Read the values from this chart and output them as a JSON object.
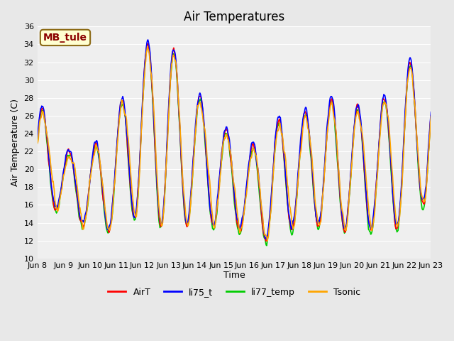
{
  "title": "Air Temperatures",
  "xlabel": "Time",
  "ylabel": "Air Temperature (C)",
  "ylim": [
    10,
    36
  ],
  "yticks": [
    10,
    12,
    14,
    16,
    18,
    20,
    22,
    24,
    26,
    28,
    30,
    32,
    34,
    36
  ],
  "annotation_text": "MB_tule",
  "annotation_color": "#8B0000",
  "annotation_bg": "#FFFFD0",
  "annotation_border": "#8B6914",
  "colors": {
    "AirT": "#FF0000",
    "li75_t": "#0000FF",
    "li77_temp": "#00CC00",
    "Tsonic": "#FFA500"
  },
  "line_width": 1.2,
  "background_color": "#E8E8E8",
  "plot_bg": "#EFEFEF",
  "grid_color": "#FFFFFF",
  "title_fontsize": 12,
  "axis_fontsize": 9,
  "tick_fontsize": 8,
  "legend_fontsize": 9,
  "x_tick_labels": [
    "Jun 8",
    "Jun 9",
    "Jun 10",
    "Jun 11",
    "Jun 12",
    "Jun 13",
    "Jun 14",
    "Jun 15",
    "Jun 16",
    "Jun 17",
    "Jun 18",
    "Jun 19",
    "Jun 20",
    "Jun 21",
    "Jun 22",
    "Jun 23"
  ],
  "x_tick_positions": [
    0,
    24,
    48,
    72,
    96,
    120,
    144,
    168,
    192,
    216,
    240,
    264,
    288,
    312,
    336,
    360
  ],
  "num_points": 720,
  "total_hours": 360
}
